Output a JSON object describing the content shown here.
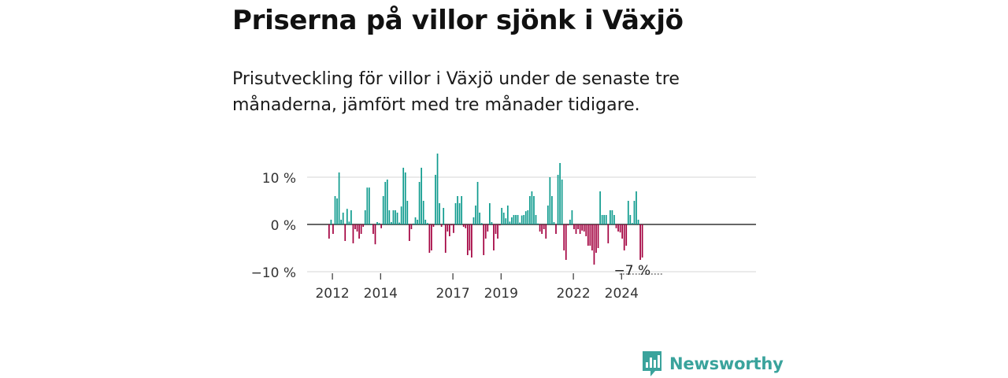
{
  "header": {
    "title": "Priserna på villor sjönk i Växjö",
    "subtitle": "Prisutveckling för villor i Växjö under de senaste tre månaderna, jämfört med tre månader tidigare."
  },
  "brand": {
    "name": "Newsworthy",
    "color": "#3aa39c"
  },
  "chart_data": {
    "type": "bar",
    "title": "",
    "xlabel": "",
    "ylabel": "",
    "ylim": [
      -10,
      15
    ],
    "grid": true,
    "legend": "none",
    "colors": {
      "positive": "#0f9b8e",
      "negative": "#a3003f",
      "grid": "#dddddd",
      "zero_line": "#333333"
    },
    "y_ticks": [
      {
        "value": 10,
        "label": "10 %"
      },
      {
        "value": 0,
        "label": "0 %"
      },
      {
        "value": -10,
        "label": "−10 %"
      }
    ],
    "x_ticks": [
      "2012",
      "2014",
      "2017",
      "2019",
      "2022",
      "2024"
    ],
    "annotation": {
      "label": "−7 %"
    },
    "x_start": "2011-11",
    "x_end": "2024-08",
    "values": [
      -3,
      1,
      -2,
      6,
      5.5,
      11,
      1,
      2.5,
      -3.5,
      3.3,
      0.6,
      3,
      -4,
      -1,
      -1.5,
      -3,
      -2,
      -0.5,
      3,
      7.8,
      7.8,
      0,
      -2,
      -4.2,
      0.5,
      0.3,
      -0.8,
      6,
      9,
      9.5,
      3,
      0.5,
      3,
      3,
      2.5,
      0.4,
      3.8,
      12,
      11,
      5,
      -3.5,
      -1,
      0.2,
      1.5,
      1,
      9,
      12,
      5,
      1,
      0.3,
      -6,
      -5.5,
      -0.5,
      10.5,
      15,
      4.5,
      -0.5,
      3.5,
      -6,
      -1.5,
      -2.5,
      -0.2,
      -1.8,
      4.5,
      6,
      4.5,
      6,
      -0.5,
      -0.8,
      -6.5,
      -5.5,
      -7,
      1.5,
      4,
      9,
      2.5,
      0.3,
      -6.5,
      -3,
      -1.5,
      4.5,
      0.5,
      -5.5,
      -2,
      -3,
      -0.2,
      3.5,
      2.5,
      1.3,
      4,
      0.6,
      1.5,
      2,
      2,
      2,
      0.4,
      1.9,
      2,
      2.8,
      3,
      6,
      7,
      6,
      2,
      0.2,
      -1.5,
      -2,
      -1,
      -3,
      4,
      10,
      6,
      0.5,
      -2,
      10.5,
      13,
      9.5,
      -5.5,
      -7.5,
      -0.2,
      1,
      3,
      -1,
      -2,
      -1,
      -2,
      -1.3,
      -1.5,
      -2.5,
      -4.5,
      -4.5,
      -5.5,
      -8.5,
      -6,
      -5,
      7,
      2,
      2,
      2,
      -4,
      3,
      3,
      2,
      -0.8,
      -1.5,
      -1.7,
      -3,
      -5.5,
      -4.5,
      5,
      2,
      0.3,
      5,
      7,
      1,
      -7.5,
      -7
    ]
  }
}
